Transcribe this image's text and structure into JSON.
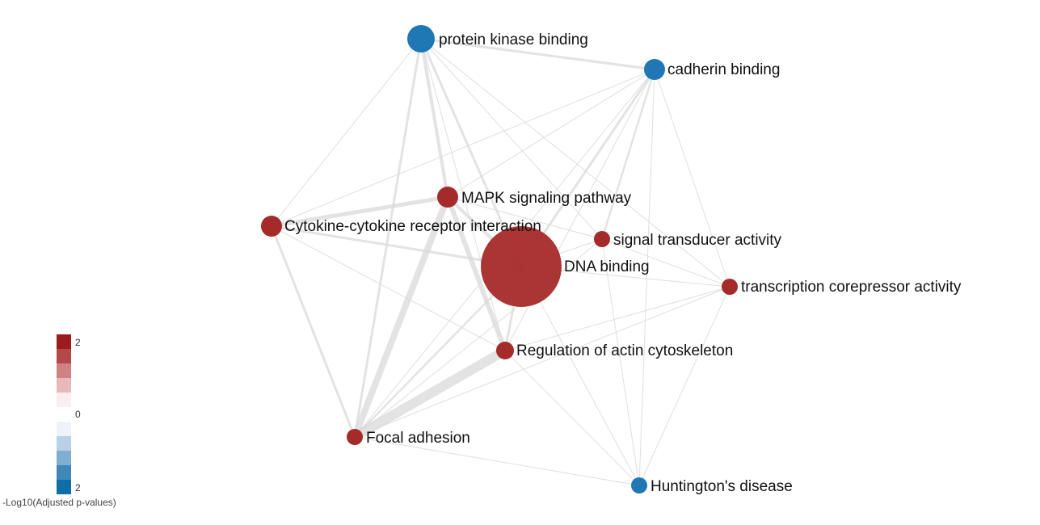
{
  "nodes": [
    {
      "id": "pkb",
      "label": "protein kinase binding",
      "color": "#1f77b4"
    },
    {
      "id": "cad",
      "label": "cadherin binding",
      "color": "#1f77b4"
    },
    {
      "id": "mapk",
      "label": "MAPK signaling pathway",
      "color": "#a52a2a"
    },
    {
      "id": "cyto",
      "label": "Cytokine-cytokine receptor interaction",
      "color": "#a52a2a"
    },
    {
      "id": "sta",
      "label": "signal transducer activity",
      "color": "#a52a2a"
    },
    {
      "id": "dna",
      "label": "DNA binding",
      "color": "#a52a2a"
    },
    {
      "id": "tca",
      "label": "transcription corepressor activity",
      "color": "#a52a2a"
    },
    {
      "id": "rac",
      "label": "Regulation of actin cytoskeleton",
      "color": "#a52a2a"
    },
    {
      "id": "fa",
      "label": "Focal adhesion",
      "color": "#a52a2a"
    },
    {
      "id": "hd",
      "label": "Huntington's disease",
      "color": "#1f77b4"
    }
  ],
  "edges": [
    [
      "pkb",
      "cad"
    ],
    [
      "pkb",
      "mapk"
    ],
    [
      "pkb",
      "dna"
    ],
    [
      "pkb",
      "sta"
    ],
    [
      "pkb",
      "rac"
    ],
    [
      "pkb",
      "fa"
    ],
    [
      "pkb",
      "cyto"
    ],
    [
      "pkb",
      "tca"
    ],
    [
      "cad",
      "mapk"
    ],
    [
      "cad",
      "dna"
    ],
    [
      "cad",
      "sta"
    ],
    [
      "cad",
      "rac"
    ],
    [
      "cad",
      "fa"
    ],
    [
      "cad",
      "tca"
    ],
    [
      "cad",
      "hd"
    ],
    [
      "cad",
      "cyto"
    ],
    [
      "mapk",
      "cyto"
    ],
    [
      "mapk",
      "dna"
    ],
    [
      "mapk",
      "sta"
    ],
    [
      "mapk",
      "rac"
    ],
    [
      "mapk",
      "fa"
    ],
    [
      "cyto",
      "dna"
    ],
    [
      "cyto",
      "rac"
    ],
    [
      "cyto",
      "fa"
    ],
    [
      "dna",
      "sta"
    ],
    [
      "dna",
      "tca"
    ],
    [
      "dna",
      "rac"
    ],
    [
      "dna",
      "fa"
    ],
    [
      "dna",
      "hd"
    ],
    [
      "sta",
      "tca"
    ],
    [
      "sta",
      "hd"
    ],
    [
      "sta",
      "fa"
    ],
    [
      "tca",
      "rac"
    ],
    [
      "tca",
      "hd"
    ],
    [
      "tca",
      "fa"
    ],
    [
      "rac",
      "fa"
    ],
    [
      "rac",
      "hd"
    ],
    [
      "fa",
      "hd"
    ]
  ],
  "legend": {
    "title": "-Log10(Adjusted p-values)",
    "tick_top": "2",
    "tick_mid": "0",
    "tick_bottom": "2",
    "colors": [
      "#9b1c1c",
      "#b34a4a",
      "#d08181",
      "#e8b9b9",
      "#fbeeee",
      "#ffffff",
      "#eef3fb",
      "#b9d0e6",
      "#7eaed0",
      "#3f89b8",
      "#0f6ea6"
    ]
  }
}
